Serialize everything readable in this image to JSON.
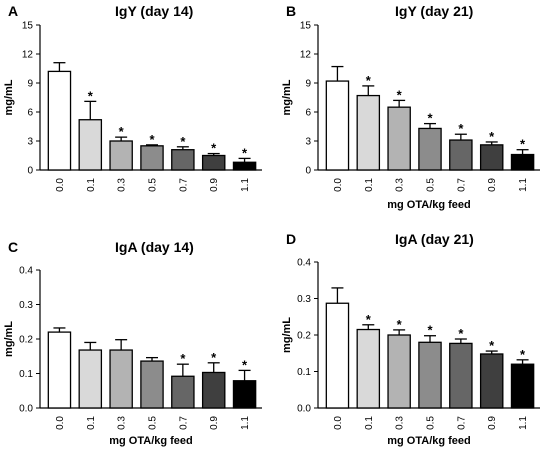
{
  "chart_data": [
    {
      "type": "bar",
      "panel": "A",
      "title": "IgY (day 14)",
      "ylabel": "mg/mL",
      "xlabel": "",
      "ylim": [
        0,
        15
      ],
      "yticks": [
        "0",
        "3",
        "6",
        "9",
        "12",
        "15"
      ],
      "categories": [
        "0.0",
        "0.1",
        "0.3",
        "0.5",
        "0.7",
        "0.9",
        "1.1"
      ],
      "values": [
        10.2,
        5.2,
        3.0,
        2.5,
        2.1,
        1.5,
        0.8
      ],
      "errors": [
        0.9,
        1.9,
        0.4,
        0.1,
        0.3,
        0.2,
        0.4
      ],
      "significant": [
        false,
        true,
        true,
        true,
        true,
        true,
        true
      ],
      "bar_colors": [
        "#ffffff",
        "#d9d9d9",
        "#b3b3b3",
        "#8c8c8c",
        "#666666",
        "#3f3f3f",
        "#000000"
      ]
    },
    {
      "type": "bar",
      "panel": "B",
      "title": "IgY (day 21)",
      "ylabel": "mg/mL",
      "xlabel": "mg OTA/kg feed",
      "ylim": [
        0,
        15
      ],
      "yticks": [
        "0",
        "3",
        "6",
        "9",
        "12",
        "15"
      ],
      "categories": [
        "0.0",
        "0.1",
        "0.3",
        "0.5",
        "0.7",
        "0.9",
        "1.1"
      ],
      "values": [
        9.2,
        7.7,
        6.5,
        4.3,
        3.1,
        2.6,
        1.6
      ],
      "errors": [
        1.5,
        1.0,
        0.7,
        0.5,
        0.6,
        0.3,
        0.5
      ],
      "significant": [
        false,
        true,
        true,
        true,
        true,
        true,
        true
      ],
      "bar_colors": [
        "#ffffff",
        "#d9d9d9",
        "#b3b3b3",
        "#8c8c8c",
        "#666666",
        "#3f3f3f",
        "#000000"
      ]
    },
    {
      "type": "bar",
      "panel": "C",
      "title": "IgA (day 14)",
      "ylabel": "mg/mL",
      "xlabel": "mg OTA/kg feed",
      "ylim": [
        0,
        0.4
      ],
      "yticks": [
        "0.0",
        "0.1",
        "0.2",
        "0.3",
        "0.4"
      ],
      "categories": [
        "0.0",
        "0.1",
        "0.3",
        "0.5",
        "0.7",
        "0.9",
        "1.1"
      ],
      "values": [
        0.22,
        0.168,
        0.168,
        0.136,
        0.092,
        0.103,
        0.079
      ],
      "errors": [
        0.012,
        0.022,
        0.03,
        0.01,
        0.035,
        0.028,
        0.03
      ],
      "significant": [
        false,
        false,
        false,
        false,
        true,
        true,
        true
      ],
      "bar_colors": [
        "#ffffff",
        "#d9d9d9",
        "#b3b3b3",
        "#8c8c8c",
        "#666666",
        "#3f3f3f",
        "#000000"
      ]
    },
    {
      "type": "bar",
      "panel": "D",
      "title": "IgA (day 21)",
      "ylabel": "mg/mL",
      "xlabel": "mg OTA/kg feed",
      "ylim": [
        0,
        0.4
      ],
      "yticks": [
        "0.0",
        "0.1",
        "0.2",
        "0.3",
        "0.4"
      ],
      "categories": [
        "0.0",
        "0.1",
        "0.3",
        "0.5",
        "0.7",
        "0.9",
        "1.1"
      ],
      "values": [
        0.287,
        0.215,
        0.2,
        0.18,
        0.177,
        0.148,
        0.12
      ],
      "errors": [
        0.042,
        0.013,
        0.014,
        0.018,
        0.012,
        0.008,
        0.012
      ],
      "significant": [
        false,
        true,
        true,
        true,
        true,
        true,
        true
      ],
      "bar_colors": [
        "#ffffff",
        "#d9d9d9",
        "#b3b3b3",
        "#8c8c8c",
        "#666666",
        "#3f3f3f",
        "#000000"
      ]
    }
  ]
}
